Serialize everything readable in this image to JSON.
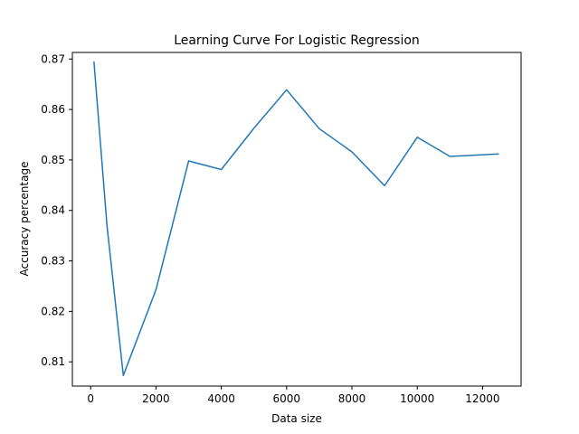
{
  "chart_data": {
    "type": "line",
    "title": "Learning Curve For Logistic Regression",
    "xlabel": "Data size",
    "ylabel": "Accuracy percentage",
    "xlim": [
      -560,
      13180
    ],
    "ylim": [
      0.8052,
      0.8713
    ],
    "xticks": [
      0,
      2000,
      4000,
      6000,
      8000,
      10000,
      12000
    ],
    "yticks": [
      0.81,
      0.82,
      0.83,
      0.84,
      0.85,
      0.86,
      0.87
    ],
    "xtick_labels": [
      "0",
      "2000",
      "4000",
      "6000",
      "8000",
      "10000",
      "12000"
    ],
    "ytick_labels": [
      "0.81",
      "0.82",
      "0.83",
      "0.84",
      "0.85",
      "0.86",
      "0.87"
    ],
    "grid": false,
    "series": [
      {
        "color": "#1f77b4",
        "x": [
          100,
          500,
          1000,
          2000,
          3000,
          4000,
          5000,
          6000,
          7000,
          8000,
          9000,
          10000,
          11000,
          12500
        ],
        "y": [
          0.8695,
          0.837,
          0.8073,
          0.8243,
          0.8498,
          0.8481,
          0.8563,
          0.8639,
          0.8562,
          0.8516,
          0.8449,
          0.8545,
          0.8507,
          0.8512
        ]
      }
    ]
  }
}
